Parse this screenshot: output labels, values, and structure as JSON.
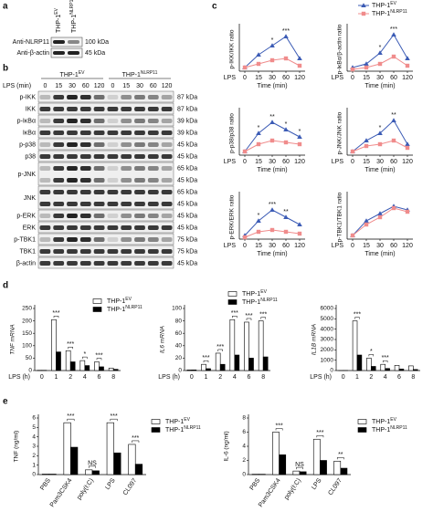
{
  "panel_a": {
    "label": "a",
    "lanes": [
      {
        "name": "THP-1",
        "sup": "EV"
      },
      {
        "name": "THP-1",
        "sup": "NLRP11"
      }
    ],
    "rows": [
      {
        "name": "Anti-NLRP11",
        "kda": "100 kDa"
      },
      {
        "name": "Anti-β-actin",
        "kda": "45 kDa"
      }
    ]
  },
  "panel_b": {
    "label": "b",
    "groups": [
      {
        "name": "THP-1",
        "sup": "EV"
      },
      {
        "name": "THP-1",
        "sup": "NLRP11"
      }
    ],
    "time_label": "LPS (min)",
    "times": [
      "0",
      "15",
      "30",
      "60",
      "120",
      "0",
      "15",
      "30",
      "60",
      "120"
    ],
    "rows": [
      {
        "name": "p-IKK",
        "kda": [
          "87 kDa"
        ]
      },
      {
        "name": "IKK",
        "kda": [
          "87 kDa"
        ]
      },
      {
        "name": "p-IκBα",
        "kda": [
          "39 kDa"
        ]
      },
      {
        "name": "IκBα",
        "kda": [
          "39 kDa"
        ]
      },
      {
        "name": "p-p38",
        "kda": [
          "45 kDa"
        ]
      },
      {
        "name": "p38",
        "kda": [
          "45 kDa"
        ]
      },
      {
        "name": "p-JNK",
        "kda": [
          "65 kDa",
          "45 kDa"
        ]
      },
      {
        "name": "JNK",
        "kda": [
          "65 kDa",
          "45 kDa"
        ]
      },
      {
        "name": "p-ERK",
        "kda": [
          "45 kDa"
        ]
      },
      {
        "name": "ERK",
        "kda": [
          "45 kDa"
        ]
      },
      {
        "name": "p-TBK1",
        "kda": [
          "75 kDa"
        ]
      },
      {
        "name": "TBK1",
        "kda": [
          "75 kDa"
        ]
      },
      {
        "name": "β-actin",
        "kda": [
          "45 kDa"
        ]
      }
    ]
  },
  "panel_labels": {
    "c": "c",
    "d": "d",
    "e": "e"
  },
  "chart_data": [
    {
      "type": "line",
      "ylabel": "p-IKK/IKK ratio",
      "xlabel": "Time (min)",
      "x_prefix": "LPS",
      "categories": [
        "0",
        "15",
        "30",
        "60",
        "120"
      ],
      "ylim": [
        0,
        1.2
      ],
      "series": [
        {
          "color": "#3b5bb5",
          "marker": "triangle",
          "values": [
            0.1,
            0.45,
            0.7,
            0.95,
            0.35
          ]
        },
        {
          "color": "#f08c8c",
          "marker": "square",
          "values": [
            0.1,
            0.2,
            0.3,
            0.35,
            0.15
          ]
        }
      ],
      "annotations": [
        {
          "text": "*",
          "category": "30"
        },
        {
          "text": "***",
          "category": "60"
        }
      ]
    },
    {
      "type": "line",
      "ylabel": "p-IκBα/β-actin ratio",
      "xlabel": "Time (min)",
      "x_prefix": "LPS",
      "categories": [
        "0",
        "15",
        "30",
        "60",
        "120"
      ],
      "ylim": [
        0,
        1.2
      ],
      "legend": true,
      "series": [
        {
          "name": "THP-1",
          "sup": "EV",
          "color": "#3b5bb5",
          "marker": "triangle",
          "values": [
            0.1,
            0.2,
            0.5,
            1.0,
            0.35
          ]
        },
        {
          "name": "THP-1",
          "sup": "NLRP11",
          "color": "#f08c8c",
          "marker": "square",
          "values": [
            0.05,
            0.1,
            0.2,
            0.4,
            0.15
          ]
        }
      ],
      "annotations": [
        {
          "text": "*",
          "category": "30"
        },
        {
          "text": "***",
          "category": "60"
        }
      ]
    },
    {
      "type": "line",
      "ylabel": "p-p38/p38 ratio",
      "xlabel": "Time (min)",
      "x_prefix": "LPS",
      "categories": [
        "0",
        "15",
        "30",
        "60",
        "120"
      ],
      "ylim": [
        0,
        1.2
      ],
      "series": [
        {
          "color": "#3b5bb5",
          "marker": "triangle",
          "values": [
            0.1,
            0.6,
            0.9,
            0.7,
            0.5
          ]
        },
        {
          "color": "#f08c8c",
          "marker": "square",
          "values": [
            0.1,
            0.3,
            0.4,
            0.35,
            0.3
          ]
        }
      ],
      "annotations": [
        {
          "text": "*",
          "category": "15"
        },
        {
          "text": "**",
          "category": "30"
        },
        {
          "text": "*",
          "category": "60"
        },
        {
          "text": "*",
          "category": "120"
        }
      ]
    },
    {
      "type": "line",
      "ylabel": "p-JNK/JNK ratio",
      "xlabel": "Time (min)",
      "x_prefix": "LPS",
      "categories": [
        "0",
        "15",
        "30",
        "60",
        "120"
      ],
      "ylim": [
        0,
        1.2
      ],
      "series": [
        {
          "color": "#3b5bb5",
          "marker": "triangle",
          "values": [
            0.1,
            0.4,
            0.6,
            0.95,
            0.3
          ]
        },
        {
          "color": "#f08c8c",
          "marker": "square",
          "values": [
            0.1,
            0.25,
            0.3,
            0.4,
            0.2
          ]
        }
      ],
      "annotations": [
        {
          "text": "*",
          "category": "30"
        },
        {
          "text": "**",
          "category": "60"
        }
      ]
    },
    {
      "type": "line",
      "ylabel": "p-ERK/ERK ratio",
      "xlabel": "Time (min)",
      "x_prefix": "LPS",
      "categories": [
        "0",
        "15",
        "30",
        "60",
        "120"
      ],
      "ylim": [
        0,
        1.2
      ],
      "series": [
        {
          "color": "#3b5bb5",
          "marker": "triangle",
          "values": [
            0.1,
            0.5,
            0.8,
            0.6,
            0.4
          ]
        },
        {
          "color": "#f08c8c",
          "marker": "square",
          "values": [
            0.05,
            0.2,
            0.25,
            0.2,
            0.15
          ]
        }
      ],
      "annotations": [
        {
          "text": "*",
          "category": "15"
        },
        {
          "text": "***",
          "category": "30"
        },
        {
          "text": "**",
          "category": "60"
        }
      ]
    },
    {
      "type": "line",
      "ylabel": "p-TBK1/TBK1 ratio",
      "xlabel": "Time (min)",
      "x_prefix": "LPS",
      "categories": [
        "0",
        "15",
        "30",
        "60",
        "120"
      ],
      "ylim": [
        0,
        1.2
      ],
      "series": [
        {
          "color": "#3b5bb5",
          "marker": "triangle",
          "values": [
            0.1,
            0.5,
            0.7,
            0.9,
            0.8
          ]
        },
        {
          "color": "#f08c8c",
          "marker": "square",
          "values": [
            0.1,
            0.4,
            0.6,
            0.85,
            0.75
          ]
        }
      ],
      "annotations": []
    },
    {
      "type": "bar",
      "ylabel": "TNF mRNA",
      "x_prefix": "LPS (h)",
      "categories": [
        "0",
        "1",
        "2",
        "4",
        "6",
        "8"
      ],
      "ylim": [
        0,
        250
      ],
      "yticks": [
        0,
        50,
        100,
        150,
        200,
        250
      ],
      "legend": true,
      "series": [
        {
          "name": "THP-1",
          "sup": "EV",
          "color": "#ffffff",
          "values": [
            1,
            205,
            80,
            40,
            35,
            10
          ]
        },
        {
          "name": "THP-1",
          "sup": "NLRP11",
          "color": "#000000",
          "values": [
            1,
            75,
            35,
            20,
            15,
            5
          ]
        }
      ],
      "annotations": [
        {
          "text": "***",
          "category": "1"
        },
        {
          "text": "***",
          "category": "2"
        },
        {
          "text": "*",
          "category": "4"
        },
        {
          "text": "***",
          "category": "6"
        }
      ]
    },
    {
      "type": "bar",
      "ylabel": "IL6 mRNA",
      "x_prefix": "LPS (h)",
      "categories": [
        "0",
        "1",
        "2",
        "4",
        "6",
        "8"
      ],
      "ylim": [
        0,
        100
      ],
      "yticks": [
        0,
        20,
        40,
        60,
        80,
        100
      ],
      "legend": true,
      "series": [
        {
          "name": "THP-1",
          "sup": "EV",
          "color": "#ffffff",
          "values": [
            1,
            10,
            28,
            82,
            78,
            80
          ]
        },
        {
          "name": "THP-1",
          "sup": "NLRP11",
          "color": "#000000",
          "values": [
            1,
            3,
            10,
            25,
            20,
            22
          ]
        }
      ],
      "annotations": [
        {
          "text": "***",
          "category": "1"
        },
        {
          "text": "***",
          "category": "2"
        },
        {
          "text": "***",
          "category": "4"
        },
        {
          "text": "***",
          "category": "6"
        },
        {
          "text": "***",
          "category": "8"
        }
      ]
    },
    {
      "type": "bar",
      "ylabel": "IL1B mRNA",
      "x_prefix": "LPS (h)",
      "categories": [
        "0",
        "1",
        "2",
        "4",
        "6",
        "8"
      ],
      "ylim": [
        0,
        6000
      ],
      "yticks": [
        0,
        1000,
        2000,
        3000,
        4000,
        5000,
        6000
      ],
      "series": [
        {
          "color": "#ffffff",
          "values": [
            5,
            4800,
            1200,
            600,
            500,
            450
          ]
        },
        {
          "color": "#000000",
          "values": [
            5,
            1500,
            400,
            200,
            150,
            100
          ]
        }
      ],
      "annotations": [
        {
          "text": "***",
          "category": "1"
        },
        {
          "text": "*",
          "category": "2"
        },
        {
          "text": "***",
          "category": "4"
        }
      ]
    },
    {
      "type": "bar",
      "ylabel": "TNF (ng/ml)",
      "categories": [
        "PBS",
        "Pam3CSK4",
        "poly(I:C)",
        "LPS",
        "CL097"
      ],
      "rotate_labels": true,
      "ylim": [
        0,
        6
      ],
      "yticks": [
        0,
        1,
        2,
        3,
        4,
        5,
        6
      ],
      "legend": true,
      "series": [
        {
          "name": "THP-1",
          "sup": "EV",
          "color": "#ffffff",
          "values": [
            0.05,
            5.5,
            0.5,
            5.5,
            3.2
          ]
        },
        {
          "name": "THP-1",
          "sup": "NLRP11",
          "color": "#000000",
          "values": [
            0.05,
            2.9,
            0.4,
            2.3,
            1.1
          ]
        }
      ],
      "annotations": [
        {
          "text": "***",
          "category": "Pam3CSK4"
        },
        {
          "text": "NS",
          "category": "poly(I:C)"
        },
        {
          "text": "***",
          "category": "LPS"
        },
        {
          "text": "***",
          "category": "CL097"
        }
      ]
    },
    {
      "type": "bar",
      "ylabel": "IL-6 (ng/ml)",
      "categories": [
        "PBS",
        "Pam3CSK4",
        "poly(I:C)",
        "LPS",
        "CL097"
      ],
      "rotate_labels": true,
      "ylim": [
        0,
        8
      ],
      "yticks": [
        0,
        2,
        4,
        6,
        8
      ],
      "legend": true,
      "series": [
        {
          "name": "THP-1",
          "sup": "EV",
          "color": "#ffffff",
          "values": [
            0.05,
            6.0,
            0.5,
            5.0,
            1.9
          ]
        },
        {
          "name": "THP-1",
          "sup": "NLRP11",
          "color": "#000000",
          "values": [
            0.05,
            2.8,
            0.4,
            2.0,
            0.9
          ]
        }
      ],
      "annotations": [
        {
          "text": "***",
          "category": "Pam3CSK4"
        },
        {
          "text": "NS",
          "category": "poly(I:C)"
        },
        {
          "text": "***",
          "category": "LPS"
        },
        {
          "text": "**",
          "category": "CL097"
        }
      ]
    }
  ]
}
